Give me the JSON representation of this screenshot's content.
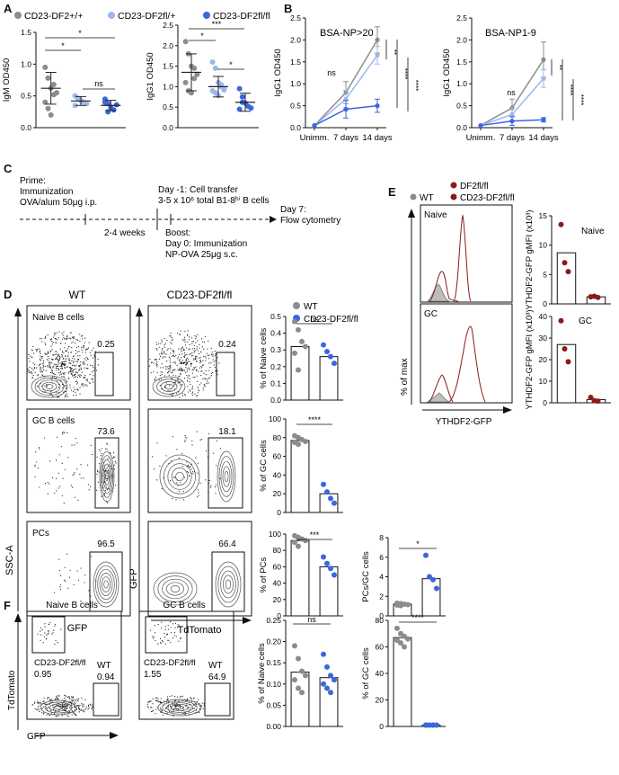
{
  "panel_letters": {
    "A": "A",
    "B": "B",
    "C": "C",
    "D": "D",
    "E": "E",
    "F": "F"
  },
  "colors": {
    "wt": "#8c8c8c",
    "fl_plus": "#9bb8ee",
    "fl_fl": "#3a66e0",
    "df2": "#8b1a1a",
    "gray_fill": "#bdbdbd"
  },
  "panelA": {
    "legend": [
      "CD23-DF2+/+",
      "CD23-DF2fl/+",
      "CD23-DF2fl/fl"
    ],
    "sig_igm": [
      "*",
      "*",
      "ns"
    ],
    "sig_igg": [
      "***",
      "*",
      "*"
    ]
  },
  "panelB": {
    "x_categories": [
      "Unimm.",
      "7 days",
      "14 days"
    ],
    "sig_ns": "ns",
    "sig_right_1": "**",
    "sig_right_2": "****",
    "sig_right_3": "****"
  },
  "panelC": {
    "prime": "Prime:",
    "immunization": "Immunization",
    "ova": "OVA/alum 50μg i.p.",
    "weeks": "2-4 weeks",
    "transfer_1": "Day -1: Cell transfer",
    "transfer_2": "3-5 x 10⁶ total B1-8ʰⁱ B cells",
    "boost": "Boost:",
    "day0": "Day 0: Immunization",
    "npova": "NP-OVA 25μg s.c.",
    "day7": "Day 7:",
    "flow": "Flow cytometry"
  },
  "panelD": {
    "col_wt": "WT",
    "col_ko": "CD23-DF2fl/fl",
    "row_labels": [
      "Naive B cells",
      "GC B cells",
      "PCs"
    ],
    "gate_wt": [
      "0.25",
      "73.6",
      "96.5"
    ],
    "gate_ko": [
      "0.24",
      "18.1",
      "66.4"
    ],
    "xaxis_left": "GFP",
    "xaxis_right": "TdTomato",
    "yaxis_left": "SSC-A",
    "yaxis_right": "GFP",
    "legend": [
      "WT",
      "CD23-DF2fl/fl"
    ],
    "sig": [
      "ns",
      "****",
      "***",
      "*"
    ]
  },
  "panelE": {
    "legend_df2": "DF2fl/fl",
    "legend_wt": "WT",
    "legend_ko": "CD23-DF2fl/fl",
    "hist_labels": [
      "Naive",
      "GC"
    ],
    "xaxis": "YTHDF2-GFP",
    "yaxis": "% of max",
    "bar_titles": [
      "Naive",
      "GC"
    ]
  },
  "panelF": {
    "titles": [
      "Naive B cells",
      "GC B cells"
    ],
    "ko_label": "CD23-DF2fl/fl",
    "wt_label": "WT",
    "vals_naive": [
      "0.95",
      "0.94"
    ],
    "vals_gc": [
      "1.55",
      "64.9"
    ],
    "xaxis": "GFP",
    "yaxis": "TdTomato",
    "sig": [
      "ns",
      "****"
    ]
  },
  "chart_data": [
    {
      "type": "scatter",
      "title": "",
      "ylabel": "IgM OD450",
      "ylim": [
        0,
        1.5
      ],
      "yticks": [
        0,
        0.5,
        1.0,
        1.5
      ],
      "categories": [
        "CD23-DF2+/+",
        "CD23-DF2fl/+",
        "CD23-DF2fl/fl"
      ],
      "series": [
        {
          "name": "CD23-DF2+/+",
          "mean": 0.62,
          "sd": 0.25,
          "values": [
            0.95,
            0.78,
            0.62,
            0.68,
            0.55,
            0.4,
            0.3,
            0.2,
            0.52
          ]
        },
        {
          "name": "CD23-DF2fl/+",
          "mean": 0.42,
          "sd": 0.07,
          "values": [
            0.5,
            0.45,
            0.42,
            0.4,
            0.38,
            0.35,
            0.46,
            0.43
          ]
        },
        {
          "name": "CD23-DF2fl/fl",
          "mean": 0.35,
          "sd": 0.08,
          "values": [
            0.45,
            0.38,
            0.32,
            0.28,
            0.36,
            0.4,
            0.25
          ]
        }
      ]
    },
    {
      "type": "scatter",
      "title": "",
      "ylabel": "IgG1 OD450",
      "ylim": [
        0,
        2.5
      ],
      "yticks": [
        0,
        0.5,
        1.0,
        1.5,
        2.0,
        2.5
      ],
      "categories": [
        "CD23-DF2+/+",
        "CD23-DF2fl/+",
        "CD23-DF2fl/fl"
      ],
      "series": [
        {
          "name": "CD23-DF2+/+",
          "mean": 1.35,
          "sd": 0.45,
          "values": [
            2.1,
            1.8,
            1.5,
            1.45,
            1.3,
            1.1,
            0.9,
            0.85,
            1.2
          ]
        },
        {
          "name": "CD23-DF2fl/+",
          "mean": 1.0,
          "sd": 0.25,
          "values": [
            1.6,
            1.45,
            1.1,
            1.0,
            0.95,
            0.9,
            0.85,
            0.78,
            1.05,
            0.92
          ]
        },
        {
          "name": "CD23-DF2fl/fl",
          "mean": 0.62,
          "sd": 0.22,
          "values": [
            0.95,
            0.75,
            0.6,
            0.52,
            0.48,
            0.45,
            0.62
          ]
        }
      ]
    },
    {
      "type": "line",
      "title": "BSA-NP>20",
      "ylabel": "IgG1 OD450",
      "ylim": [
        0,
        2.5
      ],
      "yticks": [
        0,
        0.5,
        1.0,
        1.5,
        2.0,
        2.5
      ],
      "categories": [
        "Unimm.",
        "7 days",
        "14 days"
      ],
      "series": [
        {
          "name": "CD23-DF2+/+",
          "values": [
            0.05,
            0.8,
            2.0
          ],
          "err": [
            0,
            0.25,
            0.3
          ]
        },
        {
          "name": "CD23-DF2fl/+",
          "values": [
            0.05,
            0.65,
            1.65
          ],
          "err": [
            0,
            0.2,
            0.2
          ]
        },
        {
          "name": "CD23-DF2fl/fl",
          "values": [
            0.05,
            0.42,
            0.5
          ],
          "err": [
            0,
            0.2,
            0.15
          ]
        }
      ]
    },
    {
      "type": "line",
      "title": "BSA-NP1-9",
      "ylabel": "IgG1 OD450",
      "ylim": [
        0,
        2.5
      ],
      "yticks": [
        0,
        0.5,
        1.0,
        1.5,
        2.0,
        2.5
      ],
      "categories": [
        "Unimm.",
        "7 days",
        "14 days"
      ],
      "series": [
        {
          "name": "CD23-DF2+/+",
          "values": [
            0.05,
            0.45,
            1.55
          ],
          "err": [
            0,
            0.2,
            0.4
          ]
        },
        {
          "name": "CD23-DF2fl/+",
          "values": [
            0.05,
            0.3,
            1.12
          ],
          "err": [
            0,
            0.15,
            0.2
          ]
        },
        {
          "name": "CD23-DF2fl/fl",
          "values": [
            0.05,
            0.15,
            0.18
          ],
          "err": [
            0,
            0.1,
            0.05
          ]
        }
      ]
    },
    {
      "type": "bar",
      "title": "",
      "ylabel": "% of Naive cells",
      "ylim": [
        0,
        0.5
      ],
      "yticks": [
        0.0,
        0.1,
        0.2,
        0.3,
        0.4,
        0.5
      ],
      "categories": [
        "WT",
        "CD23-DF2fl/fl"
      ],
      "values": [
        0.32,
        0.26
      ],
      "points": [
        [
          0.47,
          0.42,
          0.35,
          0.32,
          0.28,
          0.18
        ],
        [
          0.33,
          0.29,
          0.26,
          0.22
        ]
      ]
    },
    {
      "type": "bar",
      "title": "",
      "ylabel": "% of GC cells",
      "ylim": [
        0,
        100
      ],
      "yticks": [
        0,
        20,
        40,
        60,
        80,
        100
      ],
      "categories": [
        "WT",
        "CD23-DF2fl/fl"
      ],
      "values": [
        77,
        20
      ],
      "points": [
        [
          82,
          80,
          78,
          76,
          75,
          73
        ],
        [
          30,
          22,
          15,
          10
        ]
      ]
    },
    {
      "type": "bar",
      "title": "",
      "ylabel": "% of PCs",
      "ylim": [
        0,
        100
      ],
      "yticks": [
        0,
        20,
        40,
        60,
        80,
        100
      ],
      "categories": [
        "WT",
        "CD23-DF2fl/fl"
      ],
      "values": [
        92,
        60
      ],
      "points": [
        [
          98,
          96,
          94,
          92,
          90,
          85
        ],
        [
          72,
          64,
          58,
          50
        ]
      ]
    },
    {
      "type": "bar",
      "title": "",
      "ylabel": "PCs/GC cells",
      "ylim": [
        0,
        8
      ],
      "yticks": [
        0,
        2,
        4,
        6,
        8
      ],
      "categories": [
        "WT",
        "CD23-DF2fl/fl"
      ],
      "values": [
        1.2,
        3.8
      ],
      "points": [
        [
          1.3,
          1.25,
          1.2,
          1.15,
          1.1,
          1.05
        ],
        [
          6.2,
          4.0,
          3.7,
          2.8
        ]
      ]
    },
    {
      "type": "bar",
      "title": "Naive",
      "ylabel": "YTHDF2-GFP gMFI (x10³)",
      "ylim": [
        0,
        15
      ],
      "yticks": [
        0,
        5,
        10,
        15
      ],
      "categories": [
        "DF2fl/fl",
        "CD23-DF2fl/fl"
      ],
      "values": [
        8.7,
        1.2
      ],
      "points": [
        [
          13.5,
          7.0,
          5.5
        ],
        [
          1.2,
          1.3,
          1.1
        ]
      ]
    },
    {
      "type": "bar",
      "title": "GC",
      "ylabel": "YTHDF2-GFP gMFI (x10³)",
      "ylim": [
        0,
        40
      ],
      "yticks": [
        0,
        10,
        20,
        30,
        40
      ],
      "categories": [
        "DF2fl/fl",
        "CD23-DF2fl/fl"
      ],
      "values": [
        27,
        1.5
      ],
      "points": [
        [
          38,
          25,
          19
        ],
        [
          2.5,
          1.0,
          0.8
        ]
      ]
    },
    {
      "type": "bar",
      "title": "",
      "ylabel": "% of Naive cells",
      "ylim": [
        0,
        0.25
      ],
      "yticks": [
        0.0,
        0.05,
        0.1,
        0.15,
        0.2,
        0.25
      ],
      "categories": [
        "WT",
        "CD23-DF2fl/fl"
      ],
      "values": [
        0.128,
        0.115
      ],
      "points": [
        [
          0.19,
          0.16,
          0.13,
          0.12,
          0.11,
          0.09,
          0.08
        ],
        [
          0.17,
          0.14,
          0.12,
          0.11,
          0.1,
          0.09,
          0.08
        ]
      ]
    },
    {
      "type": "bar",
      "title": "",
      "ylabel": "% of GC cells",
      "ylim": [
        0,
        80
      ],
      "yticks": [
        0,
        20,
        40,
        60,
        80
      ],
      "categories": [
        "WT",
        "CD23-DF2fl/fl"
      ],
      "values": [
        67,
        1
      ],
      "points": [
        [
          74,
          70,
          68,
          66,
          65,
          63,
          60
        ],
        [
          1,
          1,
          1,
          1,
          1,
          1,
          1
        ]
      ]
    }
  ]
}
